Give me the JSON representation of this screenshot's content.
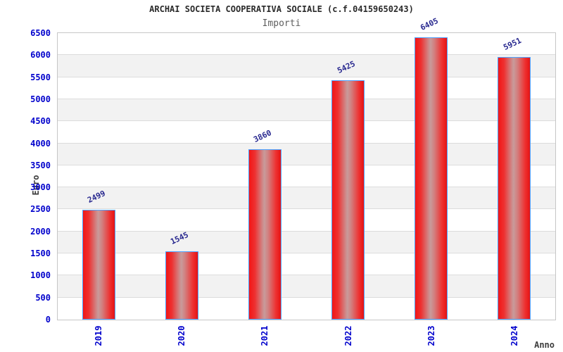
{
  "chart_data": {
    "type": "bar",
    "title": "ARCHAI SOCIETA COOPERATIVA SOCIALE (c.f.04159650243)",
    "subtitle": "Importi",
    "xlabel": "Anno",
    "ylabel": "Euro",
    "categories": [
      "2019",
      "2020",
      "2021",
      "2022",
      "2023",
      "2024"
    ],
    "values": [
      2499,
      1545,
      3860,
      5425,
      6405,
      5951
    ],
    "ylim": [
      0,
      6500
    ],
    "ytick_step": 500,
    "grid": "alternating-bands",
    "legend": "none",
    "colors": {
      "bar_fill": "#ee1414",
      "bar_highlight": "#c89b9b",
      "bar_border": "#4da2ff",
      "tick_label": "#0000cc",
      "value_label": "#28288f",
      "band_gray": "#f2f2f2",
      "gridline": "#dcdcdc",
      "axis_text": "#3c3c3c",
      "title_text": "#2a2a2a",
      "subtitle_text": "#5f5f5f",
      "plot_border": "#c6c6c6"
    }
  }
}
